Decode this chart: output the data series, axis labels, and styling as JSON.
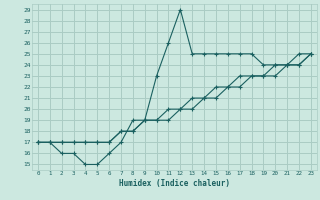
{
  "xlabel": "Humidex (Indice chaleur)",
  "bg_color": "#cce8e0",
  "grid_color": "#aaccc4",
  "line_color": "#1a6060",
  "xlim": [
    -0.5,
    23.5
  ],
  "ylim": [
    14.5,
    29.5
  ],
  "xticks": [
    0,
    1,
    2,
    3,
    4,
    5,
    6,
    7,
    8,
    9,
    10,
    11,
    12,
    13,
    14,
    15,
    16,
    17,
    18,
    19,
    20,
    21,
    22,
    23
  ],
  "yticks": [
    15,
    16,
    17,
    18,
    19,
    20,
    21,
    22,
    23,
    24,
    25,
    26,
    27,
    28,
    29
  ],
  "curve1_x": [
    0,
    1,
    2,
    3,
    4,
    5,
    6,
    7,
    8,
    9,
    10,
    11,
    12,
    13,
    14,
    15,
    16,
    17,
    18,
    19,
    20,
    21,
    22,
    23
  ],
  "curve1_y": [
    17,
    17,
    16,
    16,
    15,
    15,
    16,
    17,
    19,
    19,
    23,
    26,
    29,
    25,
    25,
    25,
    25,
    25,
    25,
    24,
    24,
    24,
    25,
    25
  ],
  "curve2_x": [
    0,
    1,
    2,
    3,
    4,
    5,
    6,
    7,
    8,
    9,
    10,
    11,
    12,
    13,
    14,
    15,
    16,
    17,
    18,
    19,
    20,
    21,
    22,
    23
  ],
  "curve2_y": [
    17,
    17,
    17,
    17,
    17,
    17,
    17,
    18,
    18,
    19,
    19,
    20,
    20,
    21,
    21,
    22,
    22,
    23,
    23,
    23,
    24,
    24,
    24,
    25
  ],
  "curve3_x": [
    0,
    1,
    2,
    3,
    4,
    5,
    6,
    7,
    8,
    9,
    10,
    11,
    12,
    13,
    14,
    15,
    16,
    17,
    18,
    19,
    20,
    21,
    22,
    23
  ],
  "curve3_y": [
    17,
    17,
    17,
    17,
    17,
    17,
    17,
    18,
    18,
    19,
    19,
    19,
    20,
    20,
    21,
    21,
    22,
    22,
    23,
    23,
    23,
    24,
    24,
    25
  ]
}
